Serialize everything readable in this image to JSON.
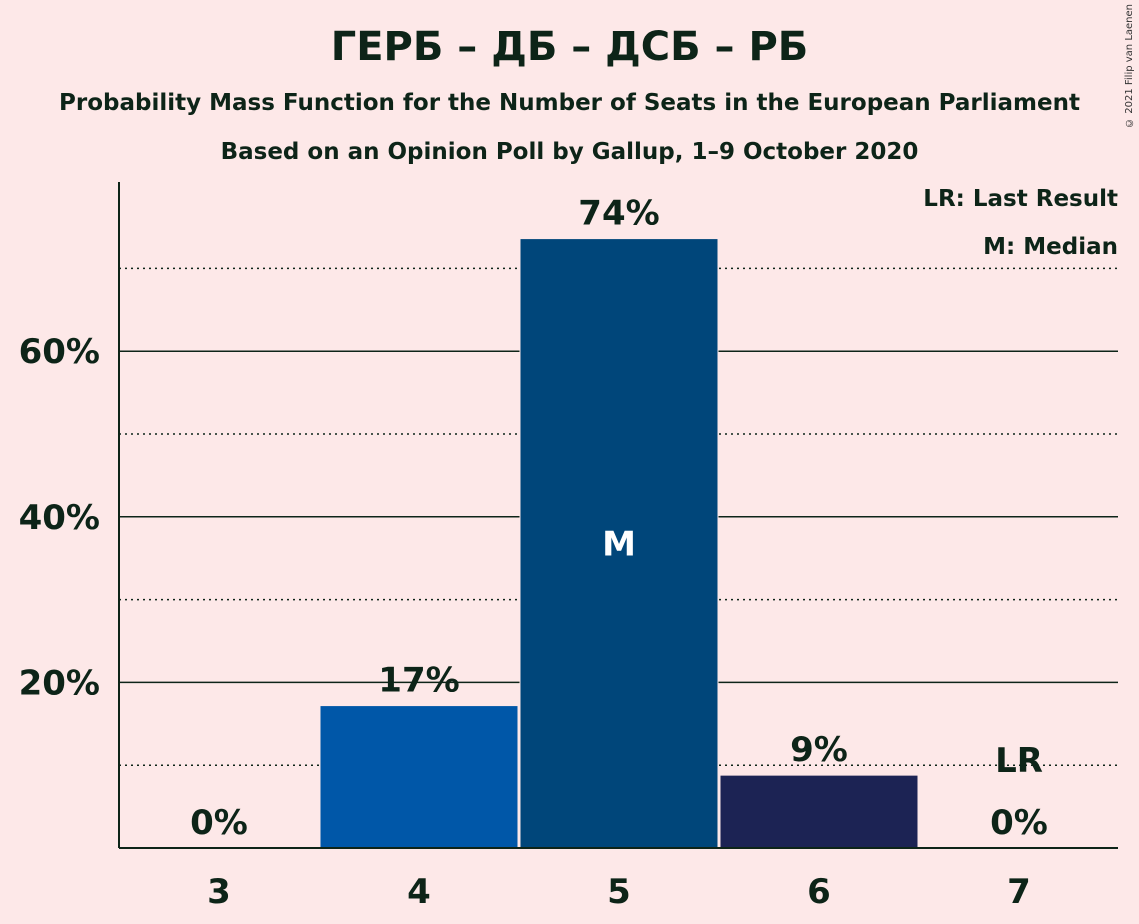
{
  "header": {
    "title": "ГЕРБ – ДБ – ДСБ – РБ",
    "subtitle": "Probability Mass Function for the Number of Seats in the European Parliament",
    "subtitle2": "Based on an Opinion Poll by Gallup, 1–9 October 2020",
    "copyright": "© 2021 Filip van Laenen"
  },
  "legend": {
    "last_result": "LR: Last Result",
    "median": "M: Median"
  },
  "chart_data": {
    "type": "bar",
    "categories": [
      "3",
      "4",
      "5",
      "6",
      "7"
    ],
    "values": [
      0,
      17.2,
      73.6,
      8.8,
      0
    ],
    "value_labels": [
      "0%",
      "17%",
      "74%",
      "9%",
      "0%"
    ],
    "bar_colors": [
      "#0057a8",
      "#0057a8",
      "#00467a",
      "#1c2354",
      "#0057a8"
    ],
    "ylim": [
      0,
      80
    ],
    "yticks": [
      20,
      40,
      60
    ],
    "ytick_labels": [
      "20%",
      "40%",
      "60%"
    ],
    "minor_gridlines": [
      10,
      30,
      50,
      70
    ],
    "median_index": 2,
    "median_label": "M",
    "last_result_index": 4,
    "last_result_label": "LR",
    "grid": true
  }
}
